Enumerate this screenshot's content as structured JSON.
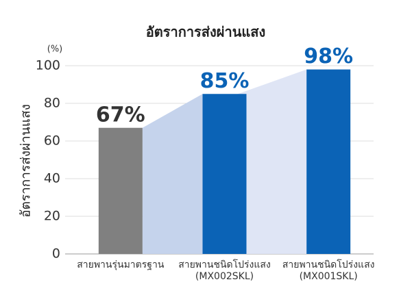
{
  "chart_data": {
    "type": "bar",
    "title": "อัตราการส่งผ่านแสง",
    "unit_label": "(%)",
    "y_label": "อัตราการส่งผ่านแสง",
    "categories": [
      "สายพานรุ่นมาตรฐาน",
      "สายพานชนิดโปร่งแสง (MX002SKL)",
      "สายพานชนิดโปร่งแสง (MX001SKL)"
    ],
    "values": [
      67,
      85,
      98
    ],
    "value_labels": [
      "67%",
      "85%",
      "98%"
    ],
    "colors": [
      "#808080",
      "#0b63b6",
      "#0b63b6"
    ],
    "label_colors": [
      "#333333",
      "#0b63b6",
      "#0b63b6"
    ],
    "ylim": [
      0,
      100
    ],
    "yticks": [
      0,
      20,
      40,
      60,
      80,
      100
    ],
    "grid": true
  }
}
